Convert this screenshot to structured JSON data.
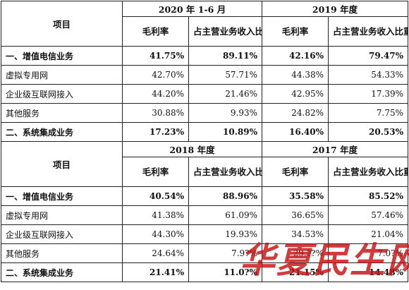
{
  "block1": {
    "item_label": "项目",
    "period_a": "2020 年 1-6 月",
    "period_b": "2019 年度",
    "col_gross_margin": "毛利率",
    "col_share": "占主营业务收入比重",
    "rows": [
      {
        "name": "一、增值电信业务",
        "a_gm": "41.75%",
        "a_share": "89.11%",
        "b_gm": "42.16%",
        "b_share": "79.47%",
        "bold": true
      },
      {
        "name": "虚拟专用网",
        "a_gm": "42.70%",
        "a_share": "57.71%",
        "b_gm": "44.38%",
        "b_share": "54.33%",
        "bold": false
      },
      {
        "name": "企业级互联网接入",
        "a_gm": "44.20%",
        "a_share": "21.46%",
        "b_gm": "42.95%",
        "b_share": "17.39%",
        "bold": false
      },
      {
        "name": "其他服务",
        "a_gm": "30.88%",
        "a_share": "9.93%",
        "b_gm": "24.82%",
        "b_share": "7.75%",
        "bold": false
      },
      {
        "name": "二、系统集成业务",
        "a_gm": "17.23%",
        "a_share": "10.89%",
        "b_gm": "16.40%",
        "b_share": "20.53%",
        "bold": true
      }
    ]
  },
  "block2": {
    "item_label": "项目",
    "period_a": "2018 年度",
    "period_b": "2017 年度",
    "col_gross_margin": "毛利率",
    "col_share": "占主营业务收入比重",
    "rows": [
      {
        "name": "一、增值电信业务",
        "a_gm": "40.54%",
        "a_share": "88.96%",
        "b_gm": "35.58%",
        "b_share": "85.52%",
        "bold": true
      },
      {
        "name": "虚拟专用网",
        "a_gm": "41.38%",
        "a_share": "61.09%",
        "b_gm": "36.65%",
        "b_share": "57.46%",
        "bold": false
      },
      {
        "name": "企业级互联网接入",
        "a_gm": "44.30%",
        "a_share": "19.93%",
        "b_gm": "34.53%",
        "b_share": "21.04%",
        "bold": false
      },
      {
        "name": "其他服务",
        "a_gm": "24.64%",
        "a_share": "7.9?%",
        "b_gm": "29.??%",
        "b_share": "7.0?%",
        "bold": false
      },
      {
        "name": "二、系统集成业务",
        "a_gm": "21.41%",
        "a_share": "11.0?%",
        "b_gm": "21.15%",
        "b_share": "14.48%",
        "bold": true
      }
    ]
  },
  "watermark": {
    "text": "华夏民生网",
    "color": "#c81010"
  }
}
